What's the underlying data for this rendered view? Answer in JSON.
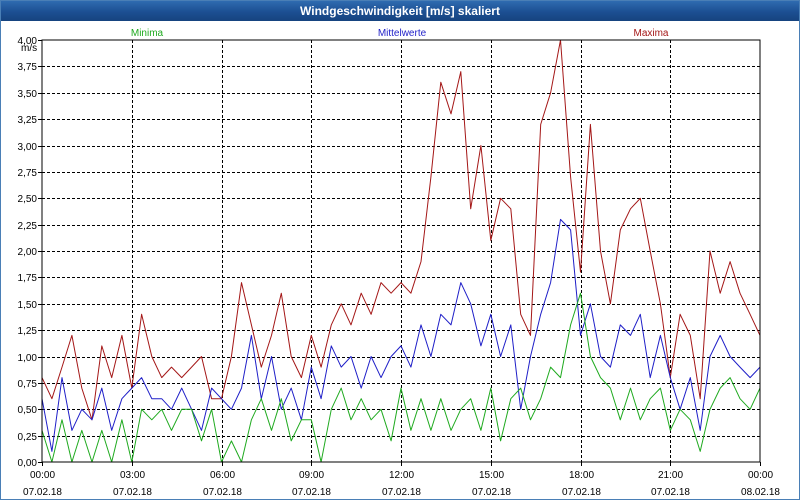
{
  "window": {
    "title": "Windgeschwindigkeit [m/s] skaliert"
  },
  "colors": {
    "minima": "#1faa1f",
    "mittelwerte": "#1f1fc8",
    "maxima": "#a41717",
    "grid": "#000000"
  },
  "chart_data": {
    "type": "line",
    "title": "Windgeschwindigkeit [m/s] skaliert",
    "ylabel": "m/s",
    "xlabel": "",
    "ylim": [
      0,
      4
    ],
    "xlim": [
      0,
      24
    ],
    "grid": true,
    "legend_position": "top",
    "y_ticks": [
      "0,00",
      "0,25",
      "0,50",
      "0,75",
      "1,00",
      "1,25",
      "1,50",
      "1,75",
      "2,00",
      "2,25",
      "2,50",
      "2,75",
      "3,00",
      "3,25",
      "3,50",
      "3,75",
      "4,00"
    ],
    "x_ticks": [
      {
        "time": "00:00",
        "date": "07.02.18"
      },
      {
        "time": "03:00",
        "date": "07.02.18"
      },
      {
        "time": "06:00",
        "date": "07.02.18"
      },
      {
        "time": "09:00",
        "date": "07.02.18"
      },
      {
        "time": "12:00",
        "date": "07.02.18"
      },
      {
        "time": "15:00",
        "date": "07.02.18"
      },
      {
        "time": "18:00",
        "date": "07.02.18"
      },
      {
        "time": "21:00",
        "date": "07.02.18"
      },
      {
        "time": "00:00",
        "date": "08.02.18"
      }
    ],
    "x_hours": [
      0,
      0.33,
      0.67,
      1,
      1.33,
      1.67,
      2,
      2.33,
      2.67,
      3,
      3.33,
      3.67,
      4,
      4.33,
      4.67,
      5,
      5.33,
      5.67,
      6,
      6.33,
      6.67,
      7,
      7.33,
      7.67,
      8,
      8.33,
      8.67,
      9,
      9.33,
      9.67,
      10,
      10.33,
      10.67,
      11,
      11.33,
      11.67,
      12,
      12.33,
      12.67,
      13,
      13.33,
      13.67,
      14,
      14.33,
      14.67,
      15,
      15.33,
      15.67,
      16,
      16.33,
      16.67,
      17,
      17.33,
      17.67,
      18,
      18.33,
      18.67,
      19,
      19.33,
      19.67,
      20,
      20.33,
      20.67,
      21,
      21.33,
      21.67,
      22,
      22.33,
      22.67,
      23,
      23.33,
      23.67,
      24
    ],
    "series": [
      {
        "name": "Minima",
        "values": [
          0.3,
          0.0,
          0.4,
          0.0,
          0.3,
          0.0,
          0.3,
          0.0,
          0.4,
          0.0,
          0.5,
          0.4,
          0.5,
          0.3,
          0.5,
          0.5,
          0.2,
          0.5,
          0.0,
          0.2,
          0.0,
          0.4,
          0.6,
          0.3,
          0.6,
          0.2,
          0.4,
          0.4,
          0.0,
          0.5,
          0.7,
          0.4,
          0.6,
          0.4,
          0.5,
          0.2,
          0.7,
          0.3,
          0.6,
          0.3,
          0.6,
          0.3,
          0.5,
          0.6,
          0.3,
          0.7,
          0.2,
          0.6,
          0.7,
          0.4,
          0.6,
          0.9,
          0.8,
          1.3,
          1.6,
          1.0,
          0.8,
          0.7,
          0.4,
          0.7,
          0.4,
          0.6,
          0.7,
          0.3,
          0.5,
          0.4,
          0.1,
          0.5,
          0.7,
          0.8,
          0.6,
          0.5,
          0.7
        ]
      },
      {
        "name": "Mittelwerte",
        "values": [
          0.6,
          0.1,
          0.8,
          0.3,
          0.5,
          0.4,
          0.7,
          0.3,
          0.6,
          0.7,
          0.8,
          0.6,
          0.6,
          0.5,
          0.7,
          0.5,
          0.3,
          0.7,
          0.6,
          0.5,
          0.7,
          1.2,
          0.6,
          1.0,
          0.5,
          0.7,
          0.4,
          0.9,
          0.6,
          1.1,
          0.9,
          1.0,
          0.7,
          1.0,
          0.8,
          1.0,
          1.1,
          0.9,
          1.3,
          1.0,
          1.4,
          1.3,
          1.7,
          1.5,
          1.1,
          1.4,
          1.0,
          1.3,
          0.5,
          1.0,
          1.4,
          1.7,
          2.3,
          2.2,
          1.2,
          1.5,
          1.0,
          0.9,
          1.3,
          1.2,
          1.4,
          0.8,
          1.2,
          0.8,
          0.5,
          0.8,
          0.3,
          1.0,
          1.2,
          1.0,
          0.9,
          0.8,
          0.9
        ]
      },
      {
        "name": "Maxima",
        "values": [
          0.8,
          0.6,
          0.9,
          1.2,
          0.7,
          0.4,
          1.1,
          0.8,
          1.2,
          0.7,
          1.4,
          1.0,
          0.8,
          0.9,
          0.8,
          0.9,
          1.0,
          0.6,
          0.6,
          1.0,
          1.7,
          1.3,
          0.9,
          1.2,
          1.6,
          1.0,
          0.8,
          1.2,
          0.9,
          1.3,
          1.5,
          1.3,
          1.6,
          1.4,
          1.7,
          1.6,
          1.7,
          1.6,
          1.9,
          2.7,
          3.6,
          3.3,
          3.7,
          2.4,
          3.0,
          2.1,
          2.5,
          2.4,
          1.4,
          1.2,
          3.2,
          3.5,
          4.0,
          2.7,
          1.8,
          3.2,
          2.0,
          1.5,
          2.2,
          2.4,
          2.5,
          2.0,
          1.5,
          0.8,
          1.4,
          1.2,
          0.6,
          2.0,
          1.6,
          1.9,
          1.6,
          1.4,
          1.2
        ]
      }
    ]
  }
}
